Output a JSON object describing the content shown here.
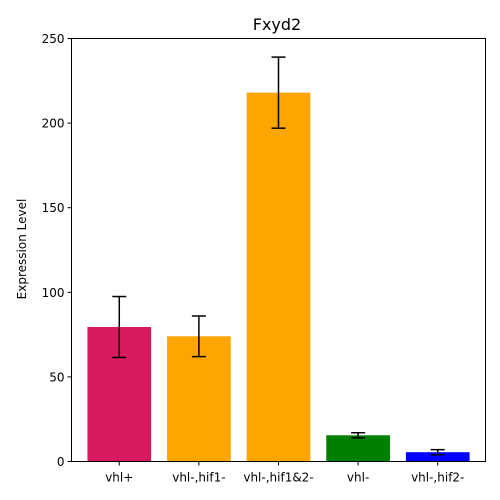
{
  "chart_data": {
    "type": "bar",
    "title": "Fxyd2",
    "xlabel": "",
    "ylabel": "Expression Level",
    "categories": [
      "vhl+",
      "vhl-,hif1-",
      "vhl-,hif1&2-",
      "vhl-",
      "vhl-,hif2-"
    ],
    "values": [
      79.5,
      74,
      218,
      15.5,
      5.5
    ],
    "errors": [
      18,
      12,
      21,
      1.5,
      1.5
    ],
    "colors": [
      "#d81b60",
      "#ffa500",
      "#ffa500",
      "#008000",
      "#0000ff"
    ],
    "ylim": [
      0,
      250
    ],
    "yticks": [
      0,
      50,
      100,
      150,
      200,
      250
    ],
    "grid": false
  }
}
